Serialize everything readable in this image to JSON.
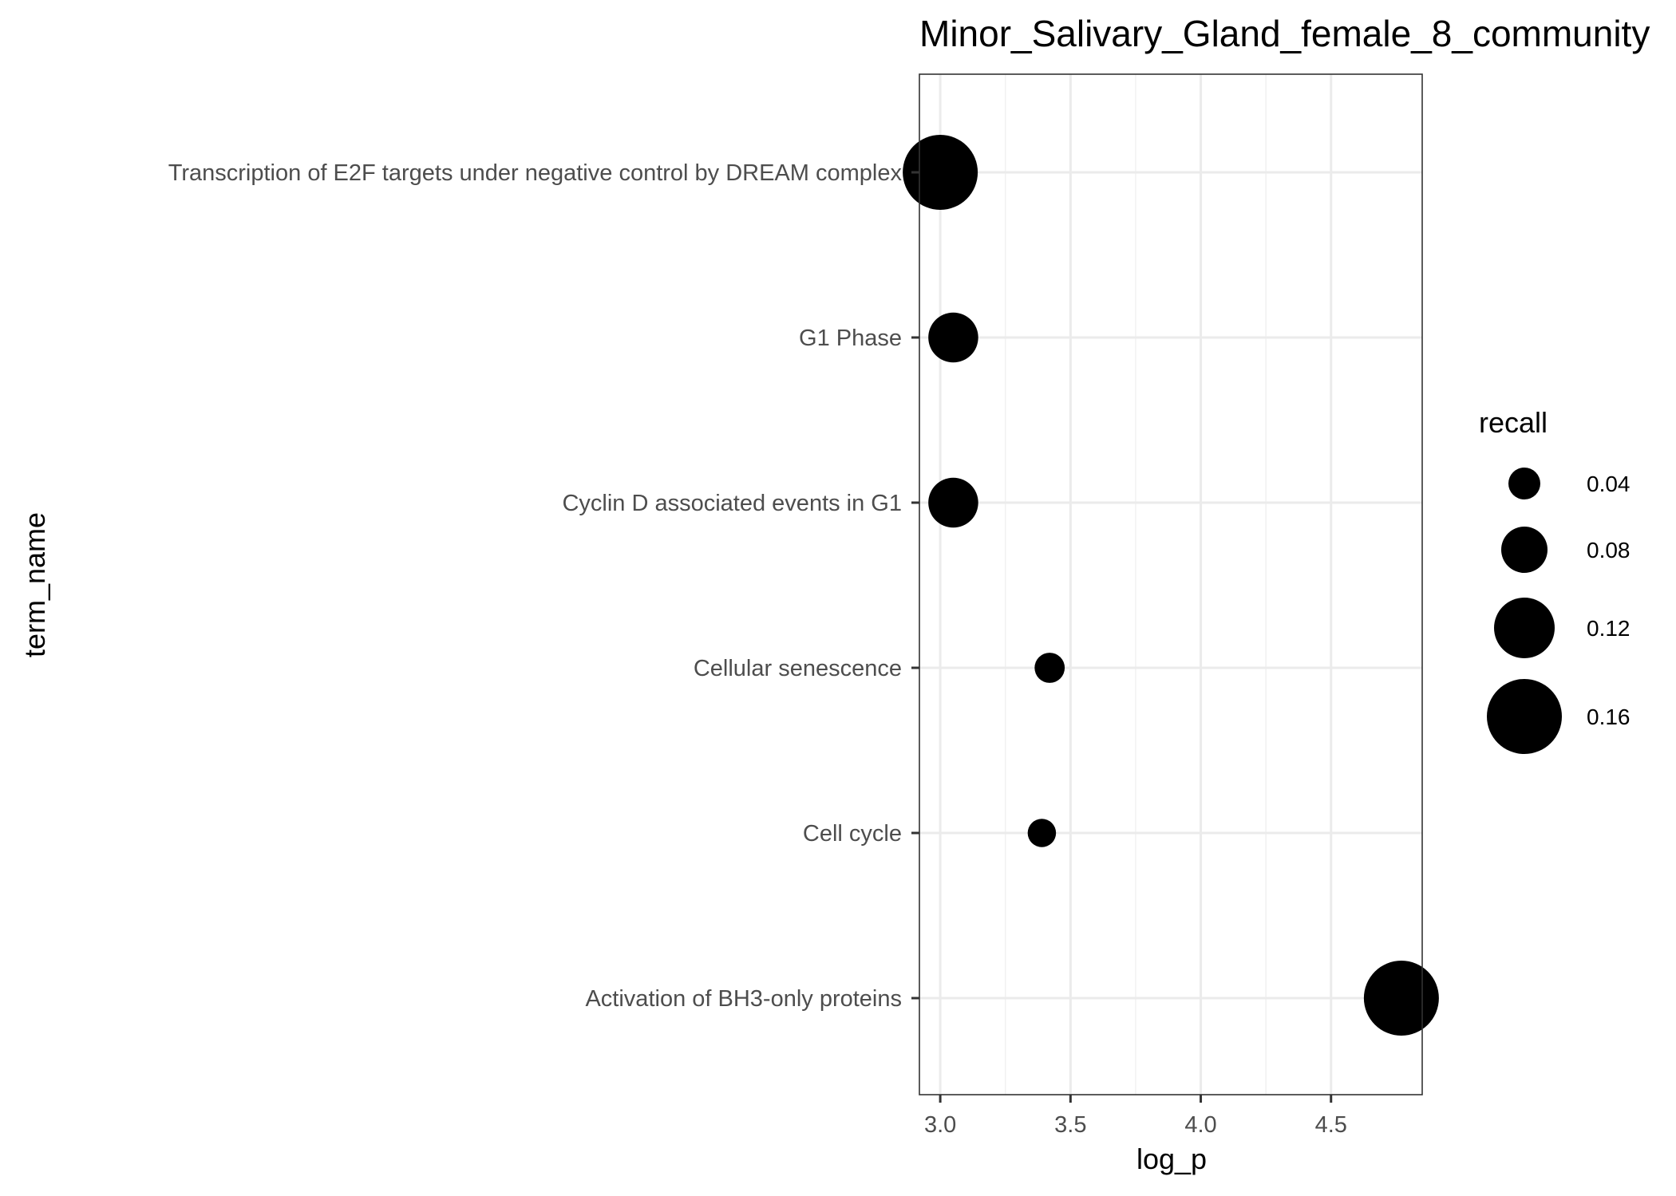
{
  "chart_data": {
    "type": "scatter",
    "title": "Minor_Salivary_Gland_female_8_community",
    "xlabel": "log_p",
    "ylabel": "term_name",
    "xlim": [
      2.92,
      4.85
    ],
    "x_ticks": [
      "3.0",
      "3.5",
      "4.0",
      "4.5"
    ],
    "grid": true,
    "legend_position": "right",
    "size_legend": {
      "title": "recall",
      "entries": [
        {
          "label": "0.04",
          "value": 0.04
        },
        {
          "label": "0.08",
          "value": 0.08
        },
        {
          "label": "0.12",
          "value": 0.12
        },
        {
          "label": "0.16",
          "value": 0.16
        }
      ]
    },
    "categories": [
      "Transcription of E2F targets under negative control by DREAM complex",
      "G1 Phase",
      "Cyclin D associated events in G1",
      "Cellular senescence",
      "Cell cycle",
      "Activation of BH3-only proteins"
    ],
    "points": [
      {
        "term": "Transcription of E2F targets under negative control by DREAM complex",
        "log_p": 3.0,
        "recall": 0.16
      },
      {
        "term": "G1 Phase",
        "log_p": 3.05,
        "recall": 0.09
      },
      {
        "term": "Cyclin D associated events in G1",
        "log_p": 3.05,
        "recall": 0.09
      },
      {
        "term": "Cellular senescence",
        "log_p": 3.42,
        "recall": 0.035
      },
      {
        "term": "Cell cycle",
        "log_p": 3.39,
        "recall": 0.03
      },
      {
        "term": "Activation of BH3-only proteins",
        "log_p": 4.77,
        "recall": 0.16
      }
    ],
    "colors": {
      "point": "#000000",
      "panel_border": "#333333",
      "grid_major": "#ebebeb",
      "grid_minor": "#f2f2f2",
      "tick_text": "#4d4d4d"
    }
  }
}
